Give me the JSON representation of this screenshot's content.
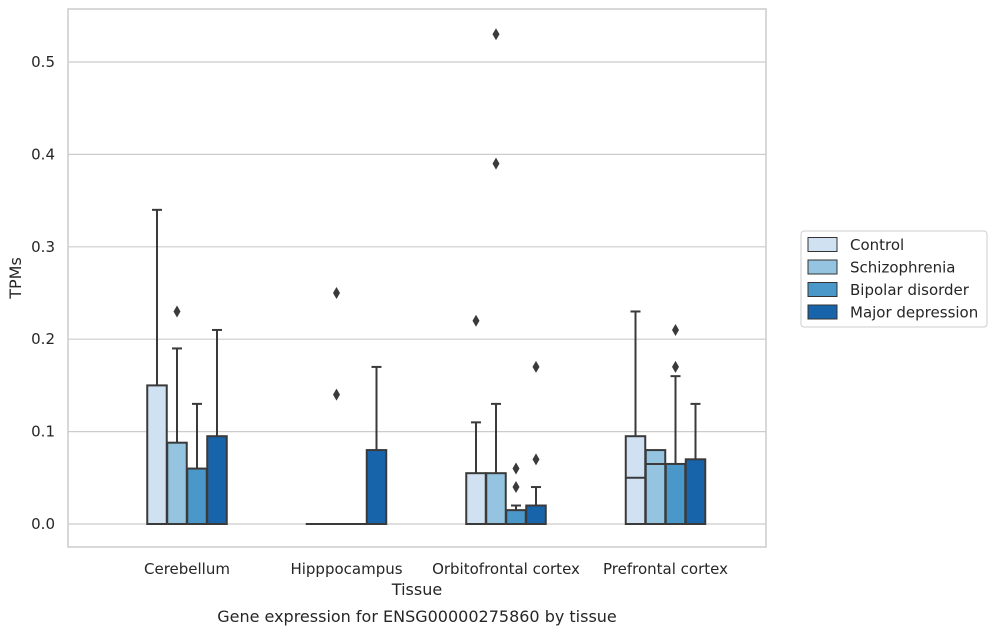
{
  "chart_data": {
    "type": "box",
    "title": "Gene expression for ENSG00000275860 by tissue",
    "xlabel": "Tissue",
    "ylabel": "TPMs",
    "ylim": [
      -0.025,
      0.558
    ],
    "yticks": [
      0.0,
      0.1,
      0.2,
      0.3,
      0.4,
      0.5
    ],
    "ytick_labels": [
      "0.0",
      "0.1",
      "0.2",
      "0.3",
      "0.4",
      "0.5"
    ],
    "grid": true,
    "legend_position": "right",
    "categories": [
      "Cerebellum",
      "Hipppocampus",
      "Orbitofrontal cortex",
      "Prefrontal cortex"
    ],
    "series": [
      {
        "name": "Control",
        "color": "#d0e1f2",
        "boxes": [
          {
            "q1": 0.0,
            "median": 0.0,
            "q3": 0.15,
            "whisker_low": 0.0,
            "whisker_high": 0.34,
            "outliers": []
          },
          {
            "q1": 0.0,
            "median": 0.0,
            "q3": 0.0,
            "whisker_low": 0.0,
            "whisker_high": 0.0,
            "outliers": []
          },
          {
            "q1": 0.0,
            "median": 0.0,
            "q3": 0.055,
            "whisker_low": 0.0,
            "whisker_high": 0.11,
            "outliers": [
              0.22
            ]
          },
          {
            "q1": 0.0,
            "median": 0.05,
            "q3": 0.095,
            "whisker_low": 0.0,
            "whisker_high": 0.23,
            "outliers": []
          }
        ]
      },
      {
        "name": "Schizophrenia",
        "color": "#94c4df",
        "boxes": [
          {
            "q1": 0.0,
            "median": 0.0,
            "q3": 0.088,
            "whisker_low": 0.0,
            "whisker_high": 0.19,
            "outliers": [
              0.23
            ]
          },
          {
            "q1": 0.0,
            "median": 0.0,
            "q3": 0.0,
            "whisker_low": 0.0,
            "whisker_high": 0.0,
            "outliers": [
              0.14,
              0.25
            ]
          },
          {
            "q1": 0.0,
            "median": 0.0,
            "q3": 0.055,
            "whisker_low": 0.0,
            "whisker_high": 0.13,
            "outliers": [
              0.39,
              0.53
            ]
          },
          {
            "q1": 0.0,
            "median": 0.065,
            "q3": 0.08,
            "whisker_low": 0.0,
            "whisker_high": 0.08,
            "outliers": []
          }
        ]
      },
      {
        "name": "Bipolar disorder",
        "color": "#4a98c9",
        "boxes": [
          {
            "q1": 0.0,
            "median": 0.0,
            "q3": 0.06,
            "whisker_low": 0.0,
            "whisker_high": 0.13,
            "outliers": []
          },
          {
            "q1": 0.0,
            "median": 0.0,
            "q3": 0.0,
            "whisker_low": 0.0,
            "whisker_high": 0.0,
            "outliers": []
          },
          {
            "q1": 0.0,
            "median": 0.0,
            "q3": 0.015,
            "whisker_low": 0.0,
            "whisker_high": 0.02,
            "outliers": [
              0.04,
              0.06
            ]
          },
          {
            "q1": 0.0,
            "median": 0.0,
            "q3": 0.065,
            "whisker_low": 0.0,
            "whisker_high": 0.16,
            "outliers": [
              0.17,
              0.21
            ]
          }
        ]
      },
      {
        "name": "Major depression",
        "color": "#1764ab",
        "boxes": [
          {
            "q1": 0.0,
            "median": 0.0,
            "q3": 0.095,
            "whisker_low": 0.0,
            "whisker_high": 0.21,
            "outliers": []
          },
          {
            "q1": 0.0,
            "median": 0.0,
            "q3": 0.08,
            "whisker_low": 0.0,
            "whisker_high": 0.17,
            "outliers": []
          },
          {
            "q1": 0.0,
            "median": 0.0,
            "q3": 0.02,
            "whisker_low": 0.0,
            "whisker_high": 0.04,
            "outliers": [
              0.07,
              0.17
            ]
          },
          {
            "q1": 0.0,
            "median": 0.0,
            "q3": 0.07,
            "whisker_low": 0.0,
            "whisker_high": 0.13,
            "outliers": []
          }
        ]
      }
    ]
  }
}
